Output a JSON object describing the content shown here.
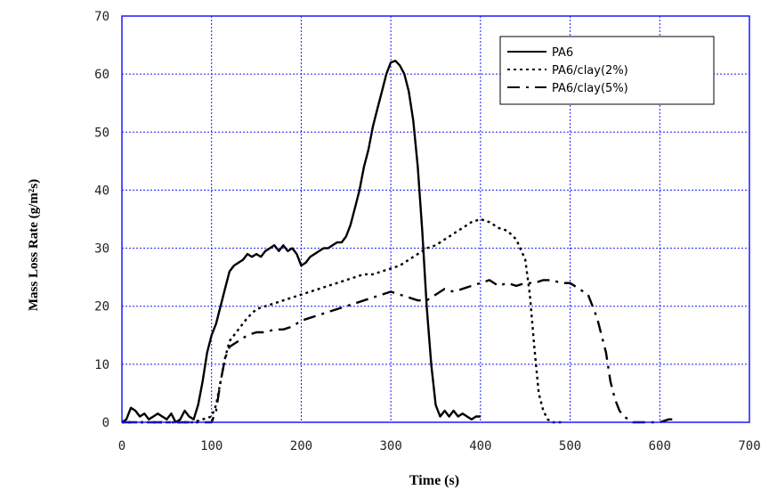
{
  "chart_data": {
    "type": "line",
    "xlabel": "Time (s)",
    "ylabel": "Mass Loss Rate (g/m²s)",
    "xlim": [
      0,
      700
    ],
    "ylim": [
      0,
      70
    ],
    "xticks": [
      0,
      100,
      200,
      300,
      400,
      500,
      600,
      700
    ],
    "yticks": [
      0,
      10,
      20,
      30,
      40,
      50,
      60,
      70
    ],
    "grid": true,
    "legend_position": "top-right",
    "series": [
      {
        "name": "PA6",
        "style": "solid",
        "x": [
          0,
          5,
          10,
          15,
          20,
          25,
          30,
          35,
          40,
          45,
          50,
          55,
          60,
          65,
          70,
          75,
          80,
          85,
          90,
          95,
          100,
          105,
          110,
          115,
          120,
          125,
          130,
          135,
          140,
          145,
          150,
          155,
          160,
          165,
          170,
          175,
          180,
          185,
          190,
          195,
          200,
          205,
          210,
          215,
          220,
          225,
          230,
          235,
          240,
          245,
          250,
          255,
          260,
          265,
          270,
          275,
          280,
          285,
          290,
          295,
          300,
          305,
          310,
          315,
          320,
          325,
          330,
          335,
          340,
          345,
          350,
          355,
          360,
          365,
          370,
          375,
          380,
          385,
          390,
          395,
          400
        ],
        "y": [
          0,
          0.5,
          2.5,
          2,
          1,
          1.5,
          0.5,
          1,
          1.5,
          1,
          0.5,
          1.5,
          0,
          0.5,
          2,
          1,
          0.5,
          3,
          7,
          12,
          15,
          17,
          20,
          23,
          26,
          27,
          27.5,
          28,
          29,
          28.5,
          29,
          28.5,
          29.5,
          30,
          30.5,
          29.5,
          30.5,
          29.5,
          30,
          29,
          27,
          27.5,
          28.5,
          29,
          29.5,
          30,
          30,
          30.5,
          31,
          31,
          32,
          34,
          37,
          40,
          44,
          47,
          51,
          54,
          57,
          60,
          62,
          62.3,
          61.5,
          60,
          57,
          52,
          44,
          33,
          20,
          10,
          3,
          1,
          2,
          1,
          2,
          1,
          1.5,
          1,
          0.5,
          1,
          1
        ]
      },
      {
        "name": "PA6/clay(2%)",
        "style": "dotted",
        "x": [
          0,
          20,
          40,
          60,
          80,
          100,
          105,
          110,
          115,
          120,
          130,
          140,
          150,
          160,
          170,
          180,
          190,
          200,
          210,
          220,
          230,
          240,
          250,
          260,
          270,
          280,
          290,
          300,
          310,
          320,
          330,
          340,
          350,
          360,
          370,
          380,
          390,
          400,
          410,
          420,
          430,
          440,
          450,
          455,
          460,
          465,
          470,
          475,
          480,
          485,
          490
        ],
        "y": [
          0,
          0,
          0,
          0,
          0,
          1,
          3,
          7,
          11,
          14,
          16,
          18,
          19.5,
          20,
          20.5,
          21,
          21.5,
          22,
          22.5,
          23,
          23.5,
          24,
          24.5,
          25,
          25.5,
          25.5,
          26,
          26.5,
          27,
          28,
          29,
          30,
          30.5,
          31.5,
          32.5,
          33.5,
          34.5,
          35,
          34.5,
          33.5,
          33,
          31.5,
          28,
          22,
          13,
          5,
          2,
          0.5,
          0,
          0,
          0
        ]
      },
      {
        "name": "PA6/clay(5%)",
        "style": "dashed",
        "x": [
          0,
          20,
          40,
          60,
          80,
          100,
          105,
          110,
          115,
          120,
          130,
          140,
          150,
          160,
          170,
          180,
          190,
          200,
          210,
          220,
          230,
          240,
          250,
          260,
          270,
          280,
          290,
          300,
          310,
          320,
          330,
          340,
          350,
          360,
          370,
          380,
          390,
          400,
          410,
          420,
          430,
          440,
          450,
          460,
          470,
          480,
          490,
          500,
          510,
          520,
          530,
          540,
          545,
          550,
          555,
          560,
          565,
          570,
          580,
          590,
          600,
          610,
          620
        ],
        "y": [
          0,
          0,
          0,
          0,
          0,
          0,
          2,
          7,
          11,
          13,
          14,
          15,
          15.5,
          15.5,
          16,
          16,
          16.5,
          17.5,
          18,
          18.5,
          19,
          19.5,
          20,
          20.5,
          21,
          21.5,
          22,
          22.5,
          22,
          21.5,
          21,
          21,
          22,
          23,
          22.5,
          23,
          23.5,
          24,
          24.5,
          23.5,
          24,
          23.5,
          24,
          24,
          24.5,
          24.5,
          24,
          24,
          23,
          22,
          18,
          12,
          7,
          4,
          2,
          1,
          0.5,
          0,
          0,
          0,
          0,
          0.5,
          0.5
        ]
      }
    ]
  }
}
